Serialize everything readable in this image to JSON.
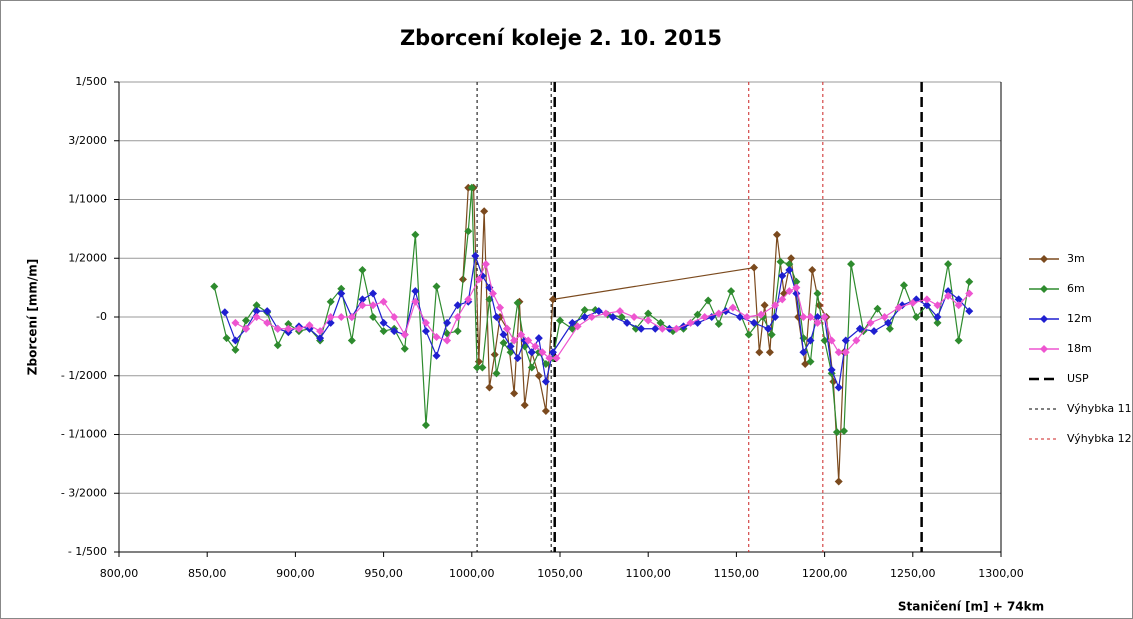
{
  "chart_data": {
    "type": "line",
    "title": "Zborcení koleje 2. 10. 2015",
    "x_label": "Staničení [m] + 74km",
    "y_label": "Zborcení [mm/m]",
    "xlim": [
      800,
      1300
    ],
    "xticks": [
      {
        "value": 800,
        "label": "800,00"
      },
      {
        "value": 850,
        "label": "850,00"
      },
      {
        "value": 900,
        "label": "900,00"
      },
      {
        "value": 950,
        "label": "950,00"
      },
      {
        "value": 1000,
        "label": "1000,00"
      },
      {
        "value": 1050,
        "label": "1050,00"
      },
      {
        "value": 1100,
        "label": "1100,00"
      },
      {
        "value": 1150,
        "label": "1150,00"
      },
      {
        "value": 1200,
        "label": "1200,00"
      },
      {
        "value": 1250,
        "label": "1250,00"
      },
      {
        "value": 1300,
        "label": "1300,00"
      }
    ],
    "ylim": [
      -0.002,
      0.002
    ],
    "yticks": [
      {
        "value": 0.002,
        "label": "1/500"
      },
      {
        "value": 0.0015,
        "label": "3/2000"
      },
      {
        "value": 0.001,
        "label": "1/1000"
      },
      {
        "value": 0.0005,
        "label": "1/2000"
      },
      {
        "value": 0,
        "label": "-0"
      },
      {
        "value": -0.0005,
        "label": "- 1/2000"
      },
      {
        "value": -0.001,
        "label": "- 1/1000"
      },
      {
        "value": -0.0015,
        "label": "- 3/2000"
      },
      {
        "value": -0.002,
        "label": "- 1/500"
      }
    ],
    "grid": true,
    "legend": "right",
    "series": [
      {
        "name": "3m",
        "color": "#7b4a1e",
        "x": [
          995,
          998,
          1001,
          1004,
          1007,
          1010,
          1013,
          1016,
          1020,
          1024,
          1027,
          1030,
          1034,
          1038,
          1042,
          1046,
          1160,
          1163,
          1166,
          1169,
          1173,
          1177,
          1181,
          1185,
          1189,
          1193,
          1197,
          1201,
          1205,
          1208,
          1211
        ],
        "values": [
          0.00032,
          0.0011,
          0.0011,
          -0.00038,
          0.0009,
          -0.0006,
          -0.00032,
          0,
          -0.0001,
          -0.00065,
          0.00013,
          -0.00075,
          -0.0003,
          -0.0005,
          -0.0008,
          0.00015,
          0.00042,
          -0.0003,
          0.0001,
          -0.0003,
          0.0007,
          0.0002,
          0.0005,
          0,
          -0.0004,
          0.0004,
          0.0001,
          0,
          -0.00055,
          -0.0014,
          -0.0003
        ]
      },
      {
        "name": "6m",
        "color": "#2e8b2e",
        "x": [
          854,
          861,
          866,
          872,
          878,
          884,
          890,
          896,
          902,
          908,
          914,
          920,
          926,
          932,
          938,
          944,
          950,
          956,
          962,
          968,
          974,
          980,
          986,
          992,
          998,
          1000,
          1003,
          1006,
          1010,
          1014,
          1018,
          1022,
          1026,
          1030,
          1034,
          1038,
          1042,
          1046,
          1050,
          1057,
          1064,
          1070,
          1077,
          1085,
          1093,
          1100,
          1107,
          1114,
          1120,
          1128,
          1134,
          1140,
          1147,
          1157,
          1165,
          1170,
          1175,
          1180,
          1184,
          1188,
          1192,
          1196,
          1200,
          1204,
          1207,
          1211,
          1215,
          1222,
          1230,
          1237,
          1245,
          1252,
          1258,
          1264,
          1270,
          1276,
          1282
        ],
        "values": [
          0.00026,
          -0.00018,
          -0.00028,
          -3e-05,
          0.0001,
          4e-05,
          -0.00024,
          -6e-05,
          -0.00012,
          -0.0001,
          -0.0002,
          0.00013,
          0.00024,
          -0.0002,
          0.0004,
          0,
          -0.00012,
          -0.0001,
          -0.00027,
          0.0007,
          -0.00092,
          0.00026,
          -0.00014,
          -0.00012,
          0.00073,
          0.0011,
          -0.00043,
          -0.00043,
          0.00015,
          -0.00048,
          -0.00022,
          -0.0003,
          0.00012,
          -0.00025,
          -0.00043,
          -0.0003,
          -0.0004,
          -0.00035,
          -3e-05,
          -0.0001,
          6e-05,
          6e-05,
          2e-05,
          0,
          -0.0001,
          3e-05,
          -5e-05,
          -0.00012,
          -0.0001,
          2e-05,
          0.00014,
          -6e-05,
          0.00022,
          -0.00015,
          0,
          -0.00015,
          0.00047,
          0.00045,
          0.0003,
          -0.00018,
          -0.00038,
          0.0002,
          -0.0002,
          -0.00048,
          -0.00098,
          -0.00097,
          0.00045,
          -0.00012,
          7e-05,
          -0.0001,
          0.00027,
          0,
          0.0001,
          -5e-05,
          0.00045,
          -0.0002,
          0.0003
        ]
      },
      {
        "name": "12m",
        "color": "#1f1fd0",
        "x": [
          860,
          866,
          872,
          878,
          884,
          890,
          896,
          902,
          908,
          914,
          920,
          926,
          932,
          938,
          944,
          950,
          956,
          962,
          968,
          974,
          980,
          986,
          992,
          998,
          1002,
          1006,
          1010,
          1014,
          1018,
          1022,
          1026,
          1030,
          1034,
          1038,
          1042,
          1046,
          1057,
          1064,
          1072,
          1080,
          1088,
          1096,
          1104,
          1112,
          1120,
          1128,
          1136,
          1144,
          1152,
          1160,
          1168,
          1172,
          1176,
          1180,
          1184,
          1188,
          1192,
          1196,
          1200,
          1204,
          1208,
          1212,
          1220,
          1228,
          1236,
          1244,
          1252,
          1258,
          1264,
          1270,
          1276,
          1282
        ],
        "values": [
          4e-05,
          -0.0002,
          -0.0001,
          5e-05,
          5e-05,
          -0.0001,
          -0.00013,
          -8e-05,
          -0.0001,
          -0.00018,
          -5e-05,
          0.0002,
          0,
          0.00015,
          0.0002,
          -5e-05,
          -0.00012,
          -0.00015,
          0.00022,
          -0.00012,
          -0.00033,
          -5e-05,
          0.0001,
          0.00013,
          0.00052,
          0.00035,
          0.00025,
          0,
          -0.00015,
          -0.00025,
          -0.00035,
          -0.0002,
          -0.0003,
          -0.00018,
          -0.00055,
          -0.0003,
          -5e-05,
          0,
          5e-05,
          0,
          -5e-05,
          -0.0001,
          -0.0001,
          -0.0001,
          -8e-05,
          -5e-05,
          0,
          5e-05,
          0,
          -5e-05,
          -0.0001,
          0,
          0.00035,
          0.0004,
          0.0002,
          -0.0003,
          -0.0002,
          0,
          0,
          -0.00045,
          -0.0006,
          -0.0002,
          -0.0001,
          -0.00012,
          -5e-05,
          0.0001,
          0.00015,
          0.0001,
          0,
          0.00022,
          0.00015,
          5e-05
        ]
      },
      {
        "name": "18m",
        "color": "#ee55d0",
        "x": [
          866,
          872,
          878,
          884,
          890,
          896,
          902,
          908,
          914,
          920,
          926,
          932,
          938,
          944,
          950,
          956,
          962,
          968,
          974,
          980,
          986,
          992,
          998,
          1004,
          1008,
          1012,
          1016,
          1020,
          1024,
          1028,
          1032,
          1036,
          1040,
          1044,
          1048,
          1060,
          1068,
          1076,
          1084,
          1092,
          1100,
          1108,
          1116,
          1124,
          1132,
          1140,
          1148,
          1156,
          1164,
          1172,
          1176,
          1180,
          1184,
          1188,
          1192,
          1196,
          1200,
          1204,
          1208,
          1212,
          1218,
          1226,
          1234,
          1242,
          1250,
          1258,
          1264,
          1270,
          1276,
          1282
        ],
        "values": [
          -5e-05,
          -0.0001,
          0,
          -5e-05,
          -0.0001,
          -0.0001,
          -0.0001,
          -7e-05,
          -0.00012,
          0,
          0,
          0,
          0.0001,
          0.0001,
          0.00013,
          0,
          -0.00015,
          0.00013,
          -5e-05,
          -0.00017,
          -0.0002,
          0,
          0.00015,
          0.00032,
          0.00045,
          0.0002,
          8e-05,
          -0.0001,
          -0.0002,
          -0.00015,
          -0.0002,
          -0.00025,
          -0.0003,
          -0.00035,
          -0.00035,
          -8e-05,
          0,
          3e-05,
          5e-05,
          0,
          -3e-05,
          -0.0001,
          -0.0001,
          -5e-05,
          0,
          3e-05,
          8e-05,
          0,
          2e-05,
          0.0001,
          0.00015,
          0.00022,
          0.00025,
          0,
          0,
          -5e-05,
          0,
          -0.0002,
          -0.0003,
          -0.0003,
          -0.0002,
          -5e-05,
          0,
          8e-05,
          0.00012,
          0.00015,
          0.0001,
          0.00018,
          0.0001,
          0.0002
        ]
      }
    ],
    "vlines": [
      {
        "name": "USP",
        "color": "#000000",
        "x": [
          1047,
          1255
        ]
      },
      {
        "name": "Výhybka 11",
        "color": "#000000",
        "x": [
          1003,
          1045
        ]
      },
      {
        "name": "Výhybka 12",
        "color": "#cc2222",
        "x": [
          1157,
          1199
        ]
      }
    ]
  }
}
